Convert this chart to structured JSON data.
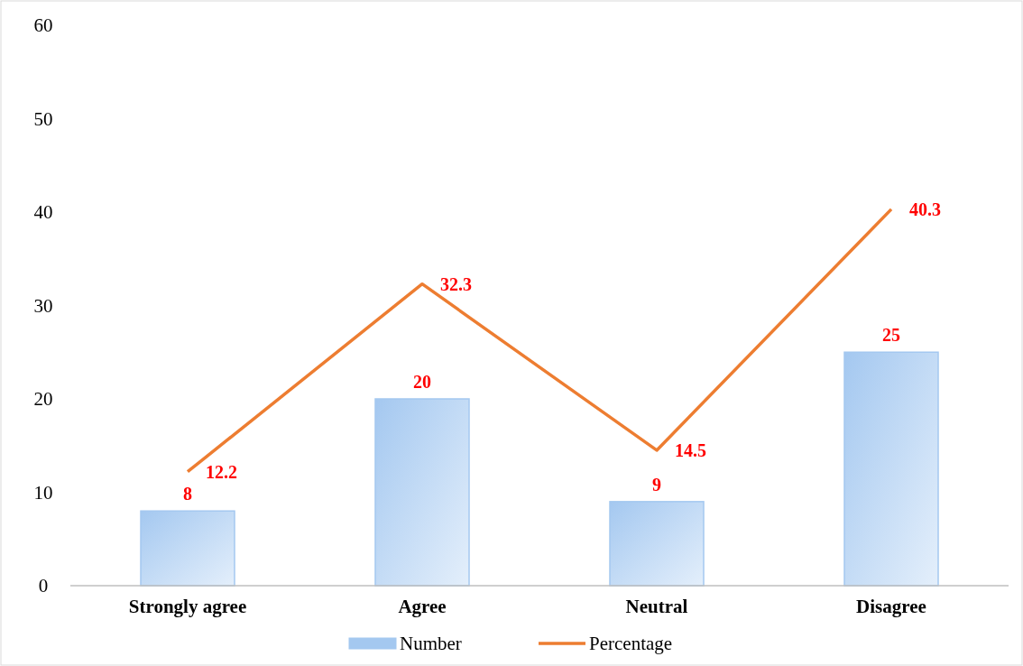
{
  "chart_data": {
    "type": "bar",
    "categories": [
      "Strongly agree",
      "Agree",
      "Neutral",
      "Disagree"
    ],
    "series": [
      {
        "name": "Number",
        "color": "#a4c8f0",
        "values": [
          8,
          20,
          9,
          25
        ]
      },
      {
        "name": "Percentage",
        "type": "line",
        "color": "#ed7d31",
        "values": [
          12.2,
          32.3,
          14.5,
          40.3
        ]
      }
    ],
    "ylim": [
      0,
      60
    ],
    "yticks": [
      0,
      10,
      20,
      30,
      40,
      50,
      60
    ],
    "data_labels": true,
    "legend": "bottom",
    "grid": false
  }
}
